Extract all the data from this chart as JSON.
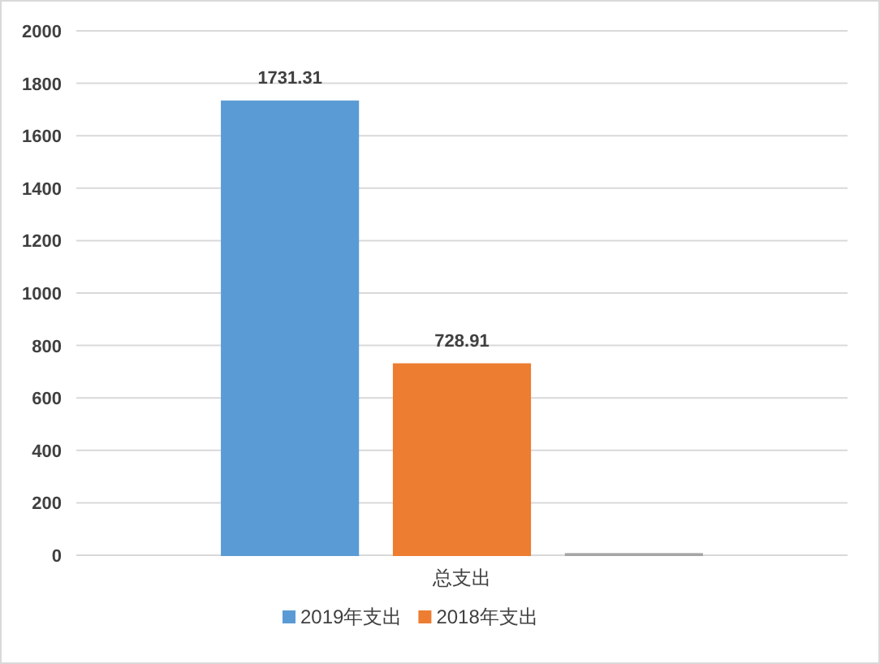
{
  "chart_data": {
    "type": "bar",
    "categories": [
      "总支出"
    ],
    "series": [
      {
        "name": "2019年支出",
        "color": "#5b9bd5",
        "values": [
          1731.31
        ],
        "value_labels": [
          "1731.31"
        ]
      },
      {
        "name": "2018年支出",
        "color": "#ed7d31",
        "values": [
          728.91
        ],
        "value_labels": [
          "728.91"
        ]
      },
      {
        "color": "#a5a5a5",
        "values": [
          5
        ],
        "value_labels": [
          null
        ]
      }
    ],
    "ylim": [
      0,
      2000
    ],
    "yticks": [
      0,
      200,
      400,
      600,
      800,
      1000,
      1200,
      1400,
      1600,
      1800,
      2000
    ],
    "grid": "y",
    "legend": "bottom"
  }
}
